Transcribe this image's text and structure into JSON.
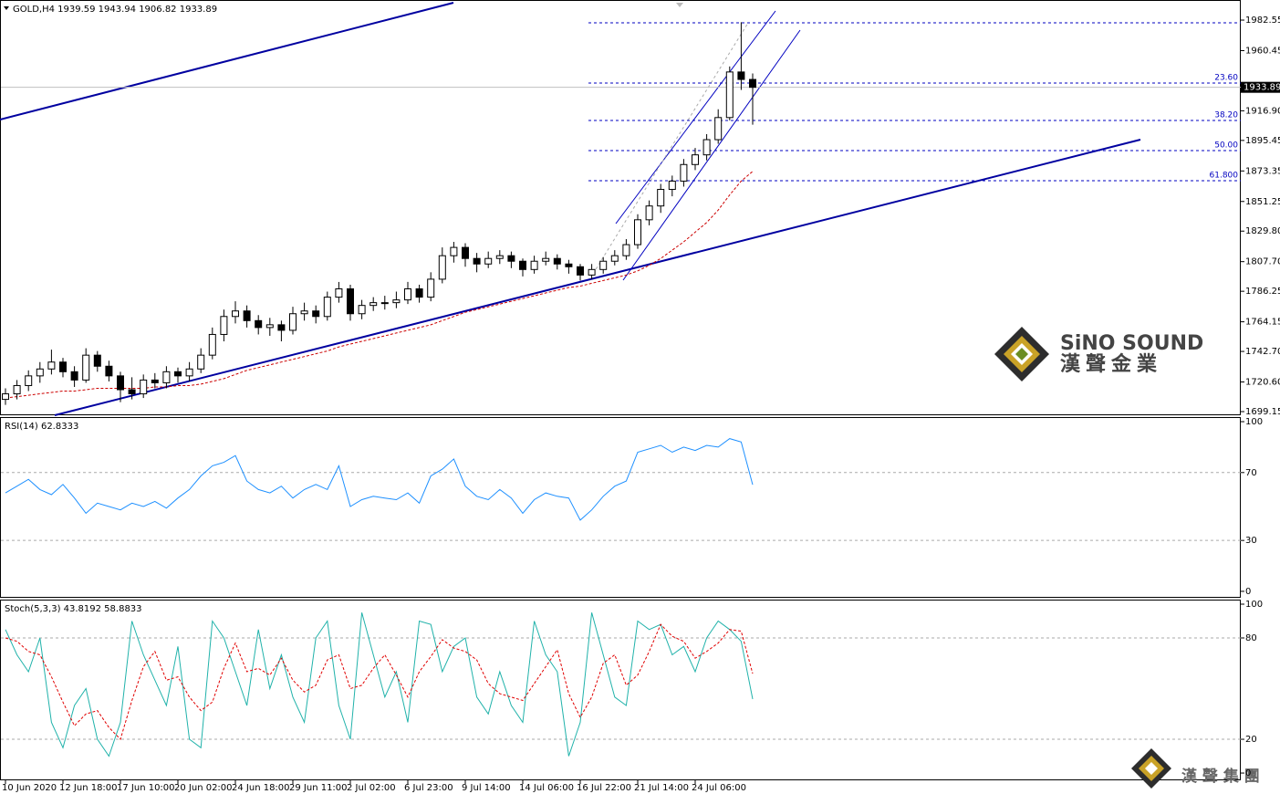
{
  "chart_data": [
    {
      "type": "candlestick",
      "title": "GOLD,H4 1939.59 1943.94 1906.82 1933.89",
      "categories": [
        "10 Jun 2020",
        null,
        null,
        null,
        null,
        "12 Jun 18:00",
        null,
        null,
        null,
        null,
        "17 Jun 10:00",
        null,
        null,
        null,
        null,
        "20 Jun 02:00",
        null,
        null,
        null,
        null,
        "24 Jun 18:00",
        null,
        null,
        null,
        null,
        "29 Jun 11:00",
        null,
        null,
        null,
        null,
        "2 Jul 02:00",
        null,
        null,
        null,
        null,
        "6 Jul 23:00",
        null,
        null,
        null,
        null,
        "9 Jul 14:00",
        null,
        null,
        null,
        null,
        "14 Jul 06:00",
        null,
        null,
        null,
        null,
        "16 Jul 22:00",
        null,
        null,
        null,
        null,
        "21 Jul 14:00",
        null,
        null,
        null,
        null,
        "24 Jul 06:00",
        null,
        null,
        null,
        null,
        null
      ],
      "open": [
        1708,
        1712,
        1718,
        1725,
        1730,
        1735,
        1728,
        1722,
        1740,
        1732,
        1725,
        1715,
        1712,
        1722,
        1720,
        1728,
        1725,
        1730,
        1740,
        1755,
        1768,
        1772,
        1765,
        1760,
        1762,
        1758,
        1770,
        1772,
        1768,
        1782,
        1788,
        1770,
        1776,
        1778,
        1778,
        1780,
        1788,
        1782,
        1795,
        1812,
        1818,
        1810,
        1806,
        1810,
        1812,
        1808,
        1802,
        1808,
        1810,
        1806,
        1804,
        1798,
        1802,
        1808,
        1812,
        1820,
        1838,
        1848,
        1860,
        1866,
        1878,
        1885,
        1896,
        1912,
        1945,
        1939.59
      ],
      "high": [
        1716,
        1722,
        1729,
        1735,
        1744,
        1738,
        1732,
        1745,
        1743,
        1736,
        1728,
        1724,
        1726,
        1727,
        1732,
        1731,
        1735,
        1745,
        1760,
        1773,
        1779,
        1776,
        1769,
        1767,
        1765,
        1775,
        1778,
        1776,
        1786,
        1793,
        1791,
        1780,
        1782,
        1783,
        1786,
        1793,
        1791,
        1800,
        1818,
        1822,
        1821,
        1814,
        1815,
        1816,
        1815,
        1810,
        1812,
        1815,
        1813,
        1809,
        1806,
        1806,
        1811,
        1816,
        1824,
        1842,
        1852,
        1864,
        1870,
        1882,
        1890,
        1900,
        1918,
        1949,
        1981,
        1943.94
      ],
      "low": [
        1704,
        1708,
        1714,
        1720,
        1726,
        1724,
        1717,
        1720,
        1728,
        1721,
        1706,
        1708,
        1709,
        1716,
        1716,
        1720,
        1721,
        1727,
        1737,
        1750,
        1763,
        1760,
        1755,
        1754,
        1750,
        1755,
        1765,
        1763,
        1765,
        1778,
        1765,
        1766,
        1772,
        1773,
        1774,
        1777,
        1778,
        1779,
        1792,
        1807,
        1804,
        1800,
        1803,
        1806,
        1803,
        1797,
        1799,
        1805,
        1802,
        1799,
        1794,
        1795,
        1799,
        1805,
        1809,
        1817,
        1834,
        1843,
        1855,
        1862,
        1874,
        1881,
        1893,
        1910,
        1932,
        1906.82
      ],
      "close": [
        1712,
        1718,
        1725,
        1730,
        1735,
        1728,
        1722,
        1740,
        1732,
        1725,
        1715,
        1712,
        1722,
        1720,
        1728,
        1725,
        1730,
        1740,
        1755,
        1768,
        1772,
        1765,
        1760,
        1762,
        1758,
        1770,
        1772,
        1768,
        1782,
        1788,
        1770,
        1776,
        1778,
        1778,
        1780,
        1788,
        1782,
        1795,
        1812,
        1818,
        1810,
        1806,
        1810,
        1812,
        1808,
        1802,
        1808,
        1810,
        1806,
        1804,
        1798,
        1802,
        1808,
        1812,
        1820,
        1838,
        1848,
        1860,
        1866,
        1878,
        1885,
        1896,
        1912,
        1945,
        1939.59,
        1933.89
      ],
      "up_color": "#ffffff",
      "down_color": "#000000",
      "ma": {
        "color": "#cc0000",
        "values": [
          1709,
          1710,
          1711,
          1712,
          1713,
          1714,
          1714,
          1715,
          1716,
          1716,
          1716,
          1716,
          1716,
          1717,
          1717,
          1718,
          1718,
          1719,
          1721,
          1723,
          1726,
          1729,
          1731,
          1733,
          1735,
          1737,
          1739,
          1741,
          1743,
          1746,
          1748,
          1750,
          1752,
          1754,
          1756,
          1758,
          1760,
          1762,
          1765,
          1768,
          1771,
          1773,
          1775,
          1777,
          1779,
          1781,
          1783,
          1785,
          1787,
          1789,
          1790,
          1792,
          1794,
          1796,
          1798,
          1801,
          1805,
          1810,
          1816,
          1822,
          1829,
          1836,
          1845,
          1856,
          1866,
          1873
        ]
      },
      "ylim": [
        1696.5,
        1997.1
      ],
      "yticks": [
        1699.15,
        {
          "value": 1720.6,
          "label": "1720.60"
        },
        {
          "value": 1742.7,
          "label": "1742.70"
        },
        1764.15,
        1786.25,
        {
          "value": 1807.7,
          "label": "1807.70"
        },
        {
          "value": 1829.8,
          "label": "1829.80"
        },
        1851.25,
        1873.35,
        1895.45,
        {
          "value": 1916.9,
          "label": "1916.90"
        },
        1960.45,
        1982.55
      ],
      "last_price": 1933.89,
      "fib_color": "#0000c0",
      "fib_levels": [
        {
          "price": 1980.6
        },
        {
          "level": {
            "value": 23.6,
            "label": "23.60"
          },
          "price": 1937.0
        },
        {
          "level": {
            "value": 38.2,
            "label": "38.20"
          },
          "price": 1909.9
        },
        {
          "level": {
            "value": 50,
            "label": "50.00"
          },
          "price": 1888.1
        },
        {
          "level": {
            "value": 61.8,
            "label": "61.800"
          },
          "price": 1866.3
        }
      ]
    },
    {
      "type": "line",
      "title": "RSI(14) 62.8333",
      "ylim": [
        -3.8,
        102.7
      ],
      "yticks": [
        0,
        30,
        70,
        100
      ],
      "levels": [
        30,
        70
      ],
      "series": [
        {
          "color": "#1e90ff",
          "values": [
            58,
            62,
            66,
            60,
            57,
            63,
            55,
            46,
            52,
            50,
            48,
            52,
            50,
            53,
            49,
            55,
            60,
            68,
            74,
            76,
            80,
            65,
            60,
            58,
            62,
            55,
            60,
            63,
            60,
            74,
            50,
            54,
            56,
            55,
            54,
            58,
            52,
            68,
            72,
            78,
            62,
            56,
            54,
            60,
            55,
            46,
            54,
            58,
            56,
            55,
            42,
            48,
            56,
            62,
            65,
            82,
            84,
            86,
            82,
            85,
            83,
            86,
            85,
            90,
            88,
            62.8333
          ]
        }
      ]
    },
    {
      "type": "line",
      "title": "Stoch(5,3,3) 43.8192 58.8833",
      "ylim": [
        -4.3,
        102.7
      ],
      "yticks": [
        0,
        20,
        80,
        100
      ],
      "levels": [
        20,
        80
      ],
      "series": [
        {
          "color": "#20b2aa",
          "values": [
            85,
            70,
            60,
            80,
            30,
            15,
            40,
            50,
            20,
            10,
            30,
            90,
            70,
            55,
            40,
            75,
            20,
            15,
            90,
            80,
            60,
            40,
            85,
            50,
            70,
            45,
            30,
            80,
            90,
            40,
            20,
            95,
            70,
            45,
            60,
            30,
            90,
            88,
            60,
            75,
            80,
            45,
            35,
            60,
            40,
            30,
            90,
            70,
            60,
            10,
            30,
            95,
            70,
            45,
            40,
            90,
            85,
            88,
            70,
            75,
            60,
            80,
            90,
            85,
            78,
            43.8192
          ]
        },
        {
          "color": "#e00000",
          "dashed": true,
          "values": [
            80,
            78,
            72,
            70,
            57,
            42,
            28,
            35,
            37,
            27,
            20,
            43,
            63,
            72,
            55,
            57,
            45,
            37,
            42,
            62,
            77,
            60,
            62,
            58,
            68,
            55,
            48,
            52,
            67,
            70,
            50,
            52,
            62,
            70,
            58,
            45,
            60,
            69,
            79,
            74,
            72,
            67,
            53,
            47,
            45,
            43,
            53,
            63,
            73,
            47,
            33,
            45,
            65,
            70,
            52,
            58,
            72,
            88,
            81,
            78,
            68,
            72,
            77,
            85,
            84,
            58.8833
          ]
        }
      ]
    }
  ],
  "watermark": {
    "brand": "SiNO SOUND",
    "chinese": "漢聲金業"
  },
  "footer_logo": {
    "text": "漢 聲 集 團"
  }
}
